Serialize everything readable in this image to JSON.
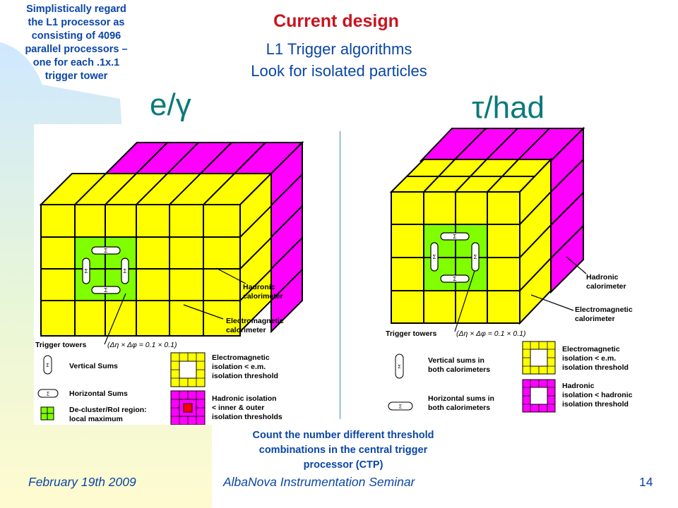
{
  "note": {
    "lines": [
      "Simplistically regard",
      "the L1 processor as",
      "consisting of 4096",
      "parallel processors –",
      "one for each .1x.1",
      "trigger tower"
    ]
  },
  "title": "Current design",
  "subtitle_1": "L1 Trigger algorithms",
  "subtitle_2": "Look for isolated particles",
  "heading_left": "e/γ",
  "heading_right": "τ/had",
  "left_figure": {
    "hadronic": [
      "Hadronic",
      "calorimeter"
    ],
    "em": [
      "Electromagnetic",
      "calorimeter"
    ],
    "trigger_towers": "Trigger towers",
    "trigger_formula": "(Δη × Δφ = 0.1 × 0.1)",
    "vertical_sums": "Vertical Sums",
    "horizontal_sums": "Horizontal Sums",
    "decluster": [
      "De-cluster/RoI region:",
      "local maximum"
    ],
    "em_isolation": [
      "Electromagnetic",
      "isolation < e.m.",
      "isolation threshold"
    ],
    "had_isolation": [
      "Hadronic isolation",
      "< inner & outer",
      "isolation thresholds"
    ],
    "sigma": "Σ"
  },
  "right_figure": {
    "hadronic": [
      "Hadronic",
      "calorimeter"
    ],
    "em": [
      "Electromagnetic",
      "calorimeter"
    ],
    "trigger_towers": "Trigger towers",
    "trigger_formula": "(Δη × Δφ = 0.1 × 0.1)",
    "vertical_sums": [
      "Vertical sums in",
      "both calorimeters"
    ],
    "horizontal_sums": [
      "Horizontal sums in",
      "both calorimeters"
    ],
    "em_isolation": [
      "Electromagnetic",
      "isolation < e.m.",
      "isolation threshold"
    ],
    "had_isolation": [
      "Hadronic",
      "isolation < hadronic",
      "isolation threshold"
    ],
    "sigma": "Σ"
  },
  "count_text": [
    "Count the number different threshold",
    "combinations in the central trigger",
    "processor (CTP)"
  ],
  "footer": {
    "date": "February 19th 2009",
    "seminar": "AlbaNova Instrumentation Seminar",
    "page": "14"
  },
  "colors": {
    "yellow": "#ffff00",
    "magenta": "#ff00ff",
    "green": "#7fff00",
    "red": "#ff0000",
    "title_red": "#c8141e",
    "text_blue": "#0a46a6",
    "heading_teal": "#0a7a7a"
  }
}
